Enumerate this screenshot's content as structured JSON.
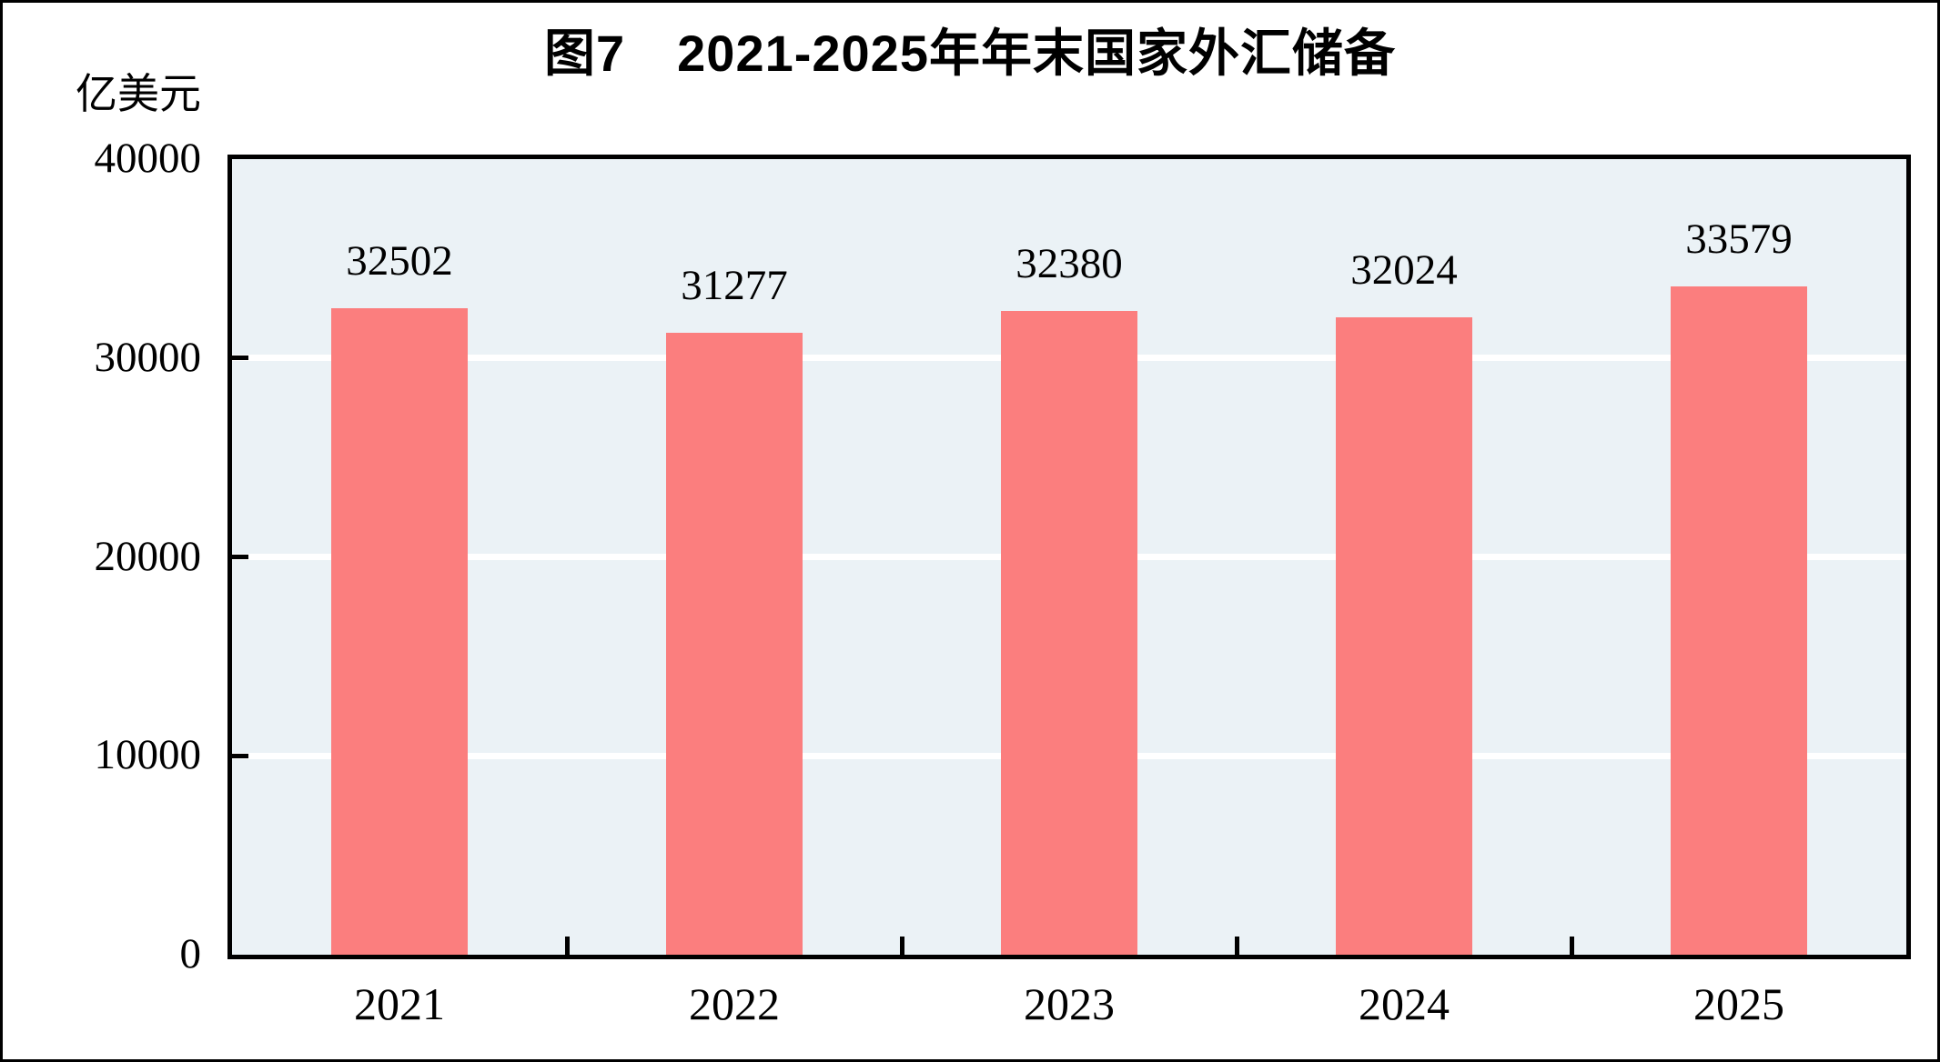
{
  "chart_data": {
    "type": "bar",
    "title": "图7　2021-2025年年末国家外汇储备",
    "unit_label": "亿美元",
    "categories": [
      "2021",
      "2022",
      "2023",
      "2024",
      "2025"
    ],
    "values": [
      32502,
      31277,
      32380,
      32024,
      33579
    ],
    "value_labels": [
      "32502",
      "31277",
      "32380",
      "32024",
      "33579"
    ],
    "ylim": [
      0,
      40000
    ],
    "yticks": [
      0,
      10000,
      20000,
      30000,
      40000
    ],
    "ytick_labels": [
      "0",
      "10000",
      "20000",
      "30000",
      "40000"
    ],
    "xlabel": "",
    "ylabel": "亿美元",
    "grid": true,
    "gridline_levels": [
      10000,
      20000,
      30000
    ],
    "legend": "none",
    "colors": {
      "bar": "#FB7E7E",
      "plot_background": "#EBF2F6",
      "gridline": "#FFFFFF",
      "axis": "#000000",
      "text": "#000000",
      "figure_background": "#FFFFFF"
    }
  }
}
